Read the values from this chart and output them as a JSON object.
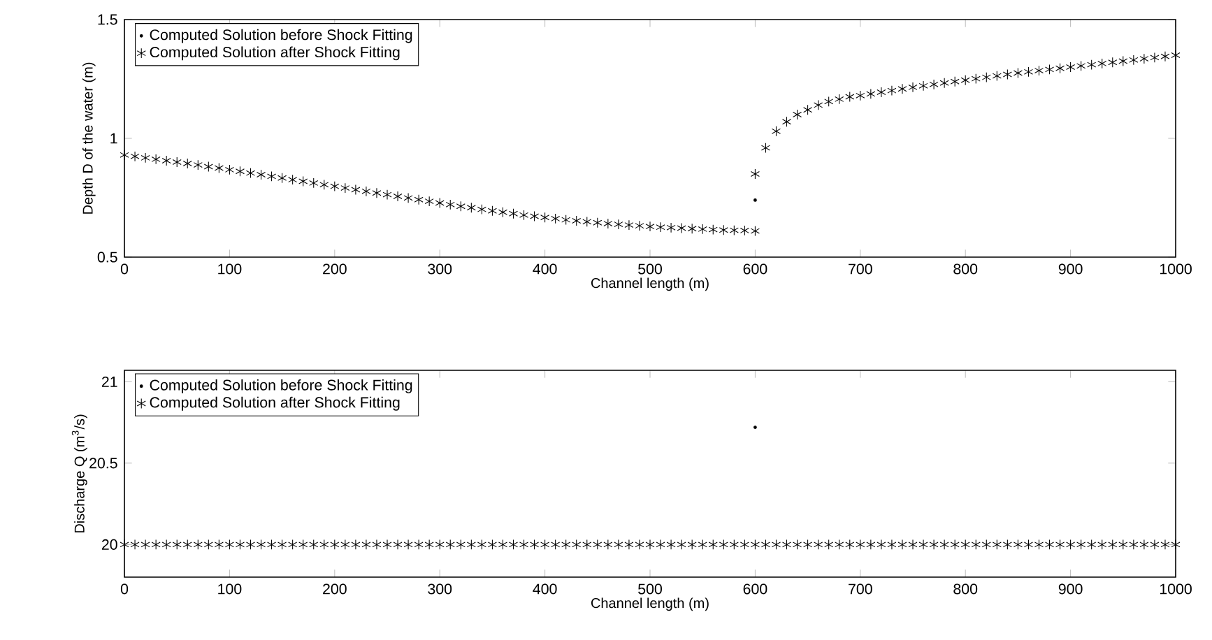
{
  "chart_data": [
    {
      "type": "scatter",
      "ylabel": "Depth D of the water (m)",
      "xlabel": "Channel length (m)",
      "xlim": [
        0,
        1000
      ],
      "ylim": [
        0.5,
        1.5
      ],
      "xticks": [
        0,
        100,
        200,
        300,
        400,
        500,
        600,
        700,
        800,
        900,
        1000
      ],
      "yticks": [
        0.5,
        1,
        1.5
      ],
      "legend": "top left",
      "series": [
        {
          "name": "Computed Solution before Shock Fitting",
          "color": "#000000",
          "marker": "circle",
          "x": [
            600
          ],
          "values": [
            0.74
          ]
        },
        {
          "name": "Computed Solution after Shock Fitting",
          "color": "#000000",
          "marker": "cross",
          "x": [
            0,
            10,
            20,
            30,
            40,
            50,
            60,
            70,
            80,
            90,
            100,
            110,
            120,
            130,
            140,
            150,
            160,
            170,
            180,
            190,
            200,
            210,
            220,
            230,
            240,
            250,
            260,
            270,
            280,
            290,
            300,
            310,
            320,
            330,
            340,
            350,
            360,
            370,
            380,
            390,
            400,
            410,
            420,
            430,
            440,
            450,
            460,
            470,
            480,
            490,
            500,
            510,
            520,
            530,
            540,
            550,
            560,
            570,
            580,
            590,
            600,
            600,
            610,
            620,
            630,
            640,
            650,
            660,
            670,
            680,
            690,
            700,
            710,
            720,
            730,
            740,
            750,
            760,
            770,
            780,
            790,
            800,
            810,
            820,
            830,
            840,
            850,
            860,
            870,
            880,
            890,
            900,
            910,
            920,
            930,
            940,
            950,
            960,
            970,
            980,
            990,
            1000
          ],
          "values": [
            0.93,
            0.924,
            0.918,
            0.912,
            0.906,
            0.9,
            0.894,
            0.888,
            0.881,
            0.875,
            0.868,
            0.861,
            0.854,
            0.847,
            0.84,
            0.833,
            0.826,
            0.819,
            0.812,
            0.805,
            0.798,
            0.791,
            0.784,
            0.777,
            0.77,
            0.763,
            0.756,
            0.749,
            0.742,
            0.735,
            0.728,
            0.721,
            0.714,
            0.708,
            0.701,
            0.695,
            0.689,
            0.683,
            0.677,
            0.672,
            0.667,
            0.662,
            0.657,
            0.653,
            0.649,
            0.645,
            0.641,
            0.638,
            0.635,
            0.632,
            0.629,
            0.626,
            0.624,
            0.622,
            0.62,
            0.618,
            0.616,
            0.614,
            0.613,
            0.612,
            0.61,
            0.85,
            0.96,
            1.03,
            1.07,
            1.1,
            1.12,
            1.14,
            1.155,
            1.165,
            1.175,
            1.18,
            1.187,
            1.194,
            1.201,
            1.208,
            1.215,
            1.221,
            1.227,
            1.233,
            1.239,
            1.245,
            1.251,
            1.257,
            1.263,
            1.269,
            1.275,
            1.28,
            1.285,
            1.29,
            1.295,
            1.3,
            1.305,
            1.31,
            1.315,
            1.32,
            1.325,
            1.33,
            1.335,
            1.34,
            1.345,
            1.35
          ]
        }
      ]
    },
    {
      "type": "scatter",
      "ylabel": "Discharge Q (m$^{3}$/s)",
      "xlabel": "Channel length (m)",
      "xlim": [
        0,
        1000
      ],
      "ylim": [
        19.8,
        21.07
      ],
      "xticks": [
        0,
        100,
        200,
        300,
        400,
        500,
        600,
        700,
        800,
        900,
        1000
      ],
      "yticks": [
        20,
        20.5,
        21
      ],
      "legend": "top left",
      "series": [
        {
          "name": "Computed Solution before Shock Fitting",
          "color": "#000000",
          "marker": "circle",
          "x": [
            600
          ],
          "values": [
            20.72
          ]
        },
        {
          "name": "Computed Solution after Shock Fitting",
          "color": "#000000",
          "marker": "cross",
          "x": [
            0,
            10,
            20,
            30,
            40,
            50,
            60,
            70,
            80,
            90,
            100,
            110,
            120,
            130,
            140,
            150,
            160,
            170,
            180,
            190,
            200,
            210,
            220,
            230,
            240,
            250,
            260,
            270,
            280,
            290,
            300,
            310,
            320,
            330,
            340,
            350,
            360,
            370,
            380,
            390,
            400,
            410,
            420,
            430,
            440,
            450,
            460,
            470,
            480,
            490,
            500,
            510,
            520,
            530,
            540,
            550,
            560,
            570,
            580,
            590,
            600,
            610,
            620,
            630,
            640,
            650,
            660,
            670,
            680,
            690,
            700,
            710,
            720,
            730,
            740,
            750,
            760,
            770,
            780,
            790,
            800,
            810,
            820,
            830,
            840,
            850,
            860,
            870,
            880,
            890,
            900,
            910,
            920,
            930,
            940,
            950,
            960,
            970,
            980,
            990,
            1000
          ],
          "values": [
            20,
            20,
            20,
            20,
            20,
            20,
            20,
            20,
            20,
            20,
            20,
            20,
            20,
            20,
            20,
            20,
            20,
            20,
            20,
            20,
            20,
            20,
            20,
            20,
            20,
            20,
            20,
            20,
            20,
            20,
            20,
            20,
            20,
            20,
            20,
            20,
            20,
            20,
            20,
            20,
            20,
            20,
            20,
            20,
            20,
            20,
            20,
            20,
            20,
            20,
            20,
            20,
            20,
            20,
            20,
            20,
            20,
            20,
            20,
            20,
            20,
            20,
            20,
            20,
            20,
            20,
            20,
            20,
            20,
            20,
            20,
            20,
            20,
            20,
            20,
            20,
            20,
            20,
            20,
            20,
            20,
            20,
            20,
            20,
            20,
            20,
            20,
            20,
            20,
            20,
            20,
            20,
            20,
            20,
            20,
            20,
            20,
            20,
            20,
            20,
            20
          ]
        }
      ]
    }
  ]
}
